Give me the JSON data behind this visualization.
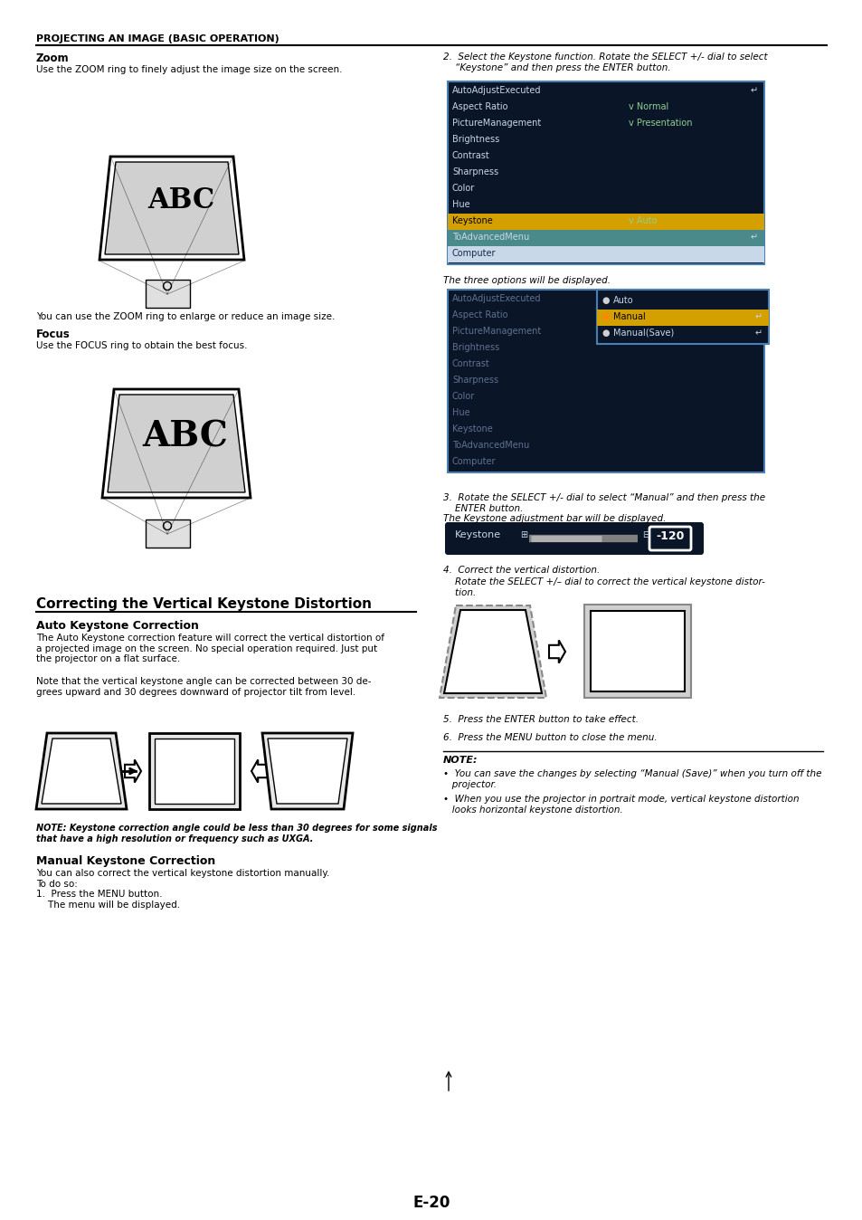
{
  "page_bg": "#ffffff",
  "header_text": "PROJECTING AN IMAGE (BASIC OPERATION)",
  "section1_title": "Zoom",
  "section1_body": "Use the ZOOM ring to finely adjust the image size on the screen.",
  "section1_caption": "You can use the ZOOM ring to enlarge or reduce an image size.",
  "section2_title": "Focus",
  "section2_body": "Use the FOCUS ring to obtain the best focus.",
  "section3_title": "Correcting the Vertical Keystone Distortion",
  "section3a_title": "Auto Keystone Correction",
  "section3a_body1": "The Auto Keystone correction feature will correct the vertical distortion of\na projected image on the screen. No special operation required. Just put\nthe projector on a flat surface.",
  "section3a_body2": "Note that the vertical keystone angle can be corrected between 30 de-\ngrees upward and 30 degrees downward of projector tilt from level.",
  "note_left": "NOTE: Keystone correction angle could be less than 30 degrees for some signals\nthat have a high resolution or frequency such as UXGA.",
  "section3b_title": "Manual Keystone Correction",
  "section3b_body": "You can also correct the vertical keystone distortion manually.\nTo do so:\n1.  Press the MENU button.\n    The menu will be displayed.",
  "right_step2_italic": "2.  Select the Keystone function. Rotate the SELECT +/- dial to select\n    “Keystone” and then press the ENTER button.",
  "menu1_items": [
    "AutoAdjustExecuted",
    "Aspect Ratio",
    "PictureManagement",
    "Brightness",
    "Contrast",
    "Sharpness",
    "Color",
    "Hue",
    "Keystone",
    "ToAdvancedMenu",
    "Computer"
  ],
  "menu1_values": [
    "",
    "v Normal",
    "v Presentation",
    "",
    "",
    "",
    "",
    "",
    "v Auto",
    "",
    ""
  ],
  "menu1_highlighted": 8,
  "menu1_caption": "The three options will be displayed.",
  "menu2_items": [
    "AutoAdjustExecuted",
    "Aspect Ratio",
    "PictureManagement",
    "Brightness",
    "Contrast",
    "Sharpness",
    "Color",
    "Hue",
    "Keystone",
    "ToAdvancedMenu",
    "Computer"
  ],
  "menu2_options": [
    "Auto",
    "Manual",
    "Manual(Save)"
  ],
  "menu2_highlighted": 1,
  "right_step3_italic": "3.  Rotate the SELECT +/- dial to select “Manual” and then press the\n    ENTER button.",
  "keystone_caption": "The Keystone adjustment bar will be displayed.",
  "keystone_value": "-120",
  "right_step4a": "4.  Correct the vertical distortion.",
  "right_step4b": "    Rotate the SELECT +/– dial to correct the vertical keystone distor-\n    tion.",
  "right_step5": "5.  Press the ENTER button to take effect.",
  "right_step6": "6.  Press the MENU button to close the menu.",
  "note_right_title": "NOTE:",
  "note_right_body1": "•  You can save the changes by selecting “Manual (Save)” when you turn off the\n   projector.",
  "note_right_body2": "•  When you use the projector in portrait mode, vertical keystone distortion\n   looks horizontal keystone distortion.",
  "page_number": "E-20",
  "dark_bg": "#0a1628",
  "menu_border": "#4a7fb5",
  "menu_row_bg_dark": "#0a1628",
  "menu_row_bg_light": "#c8d8e8",
  "menu_row_bg_teal": "#4a8a8a",
  "menu_row_bg_selected": "#d4a000",
  "menu_text_light": "#c8d8e8",
  "menu_text_dark": "#1a2a4a",
  "keystone_bar_bg": "#0a1628"
}
